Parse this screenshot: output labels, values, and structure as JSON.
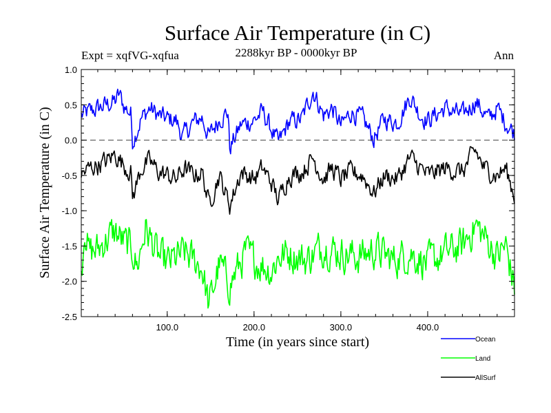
{
  "chart_data": {
    "type": "line",
    "title": "Surface Air Temperature (in C)",
    "subtitle_left": "Expt = xqfVG-xqfua",
    "subtitle_center": "2288kyr BP - 0000kyr BP",
    "subtitle_right": "Ann",
    "xlabel": "Time (in years since start)",
    "ylabel": "Surface Air Temperature (in C)",
    "xlim": [
      1,
      500
    ],
    "ylim": [
      -2.5,
      1.0
    ],
    "xticks": [
      "100.0",
      "200.0",
      "300.0",
      "400.0"
    ],
    "xtick_values": [
      100,
      200,
      300,
      400
    ],
    "yticks": [
      "1.0",
      "0.5",
      "0.0",
      "-0.5",
      "-1.0",
      "-1.5",
      "-2.0",
      "-2.5"
    ],
    "ytick_values": [
      1.0,
      0.5,
      0.0,
      -0.5,
      -1.0,
      -1.5,
      -2.0,
      -2.5
    ],
    "zero_line": 0.0,
    "n_points": 500,
    "series": [
      {
        "name": "Ocean",
        "color": "#0000ff",
        "anchors_x": [
          1,
          10,
          20,
          30,
          40,
          45,
          50,
          58,
          60,
          70,
          80,
          90,
          100,
          110,
          118,
          130,
          140,
          148,
          160,
          170,
          172,
          185,
          200,
          210,
          220,
          228,
          240,
          255,
          268,
          280,
          290,
          300,
          312,
          325,
          338,
          350,
          365,
          380,
          392,
          400,
          420,
          440,
          455,
          470,
          480,
          490,
          500
        ],
        "anchors_y": [
          0.35,
          0.4,
          0.45,
          0.5,
          0.55,
          0.65,
          0.48,
          0.38,
          -0.02,
          0.3,
          0.45,
          0.35,
          0.3,
          0.28,
          0.05,
          0.25,
          0.32,
          0.05,
          0.3,
          0.4,
          -0.12,
          0.22,
          0.28,
          0.4,
          0.15,
          -0.05,
          0.25,
          0.3,
          0.7,
          0.35,
          0.45,
          0.2,
          0.4,
          0.3,
          0.02,
          0.3,
          0.25,
          0.62,
          0.35,
          0.28,
          0.45,
          0.35,
          0.55,
          0.3,
          0.45,
          0.25,
          0.1
        ]
      },
      {
        "name": "Land",
        "color": "#00ff00",
        "anchors_x": [
          1,
          5,
          10,
          20,
          30,
          40,
          50,
          60,
          65,
          75,
          90,
          100,
          120,
          140,
          148,
          160,
          172,
          190,
          200,
          220,
          228,
          240,
          260,
          280,
          300,
          320,
          340,
          360,
          380,
          400,
          420,
          440,
          455,
          470,
          480,
          490,
          500
        ],
        "anchors_y": [
          -1.9,
          -1.2,
          -1.6,
          -1.55,
          -1.4,
          -1.3,
          -1.45,
          -1.55,
          -1.8,
          -1.25,
          -1.65,
          -1.75,
          -1.6,
          -1.8,
          -2.35,
          -1.75,
          -2.05,
          -1.6,
          -1.7,
          -1.85,
          -1.65,
          -1.6,
          -1.7,
          -1.5,
          -1.6,
          -1.65,
          -1.55,
          -1.7,
          -1.6,
          -1.75,
          -1.6,
          -1.5,
          -1.2,
          -1.45,
          -1.65,
          -1.5,
          -2.1
        ]
      },
      {
        "name": "AllSurf",
        "color": "#000000",
        "anchors_x": [
          1,
          10,
          20,
          30,
          40,
          50,
          58,
          60,
          70,
          80,
          90,
          100,
          110,
          120,
          130,
          140,
          148,
          160,
          172,
          185,
          200,
          210,
          220,
          228,
          240,
          255,
          268,
          280,
          290,
          300,
          312,
          325,
          338,
          350,
          365,
          380,
          400,
          420,
          440,
          455,
          465,
          480,
          490,
          500
        ],
        "anchors_y": [
          -0.5,
          -0.4,
          -0.35,
          -0.3,
          -0.2,
          -0.35,
          -0.45,
          -0.82,
          -0.4,
          -0.3,
          -0.45,
          -0.5,
          -0.55,
          -0.4,
          -0.5,
          -0.45,
          -0.9,
          -0.5,
          -0.92,
          -0.45,
          -0.55,
          -0.4,
          -0.6,
          -0.85,
          -0.5,
          -0.45,
          -0.25,
          -0.55,
          -0.4,
          -0.55,
          -0.45,
          -0.5,
          -0.75,
          -0.5,
          -0.55,
          -0.25,
          -0.5,
          -0.4,
          -0.45,
          -0.15,
          -0.4,
          -0.5,
          -0.4,
          -0.8
        ]
      }
    ],
    "legend": [
      {
        "label": "Ocean",
        "color": "#0000ff"
      },
      {
        "label": "Land",
        "color": "#00ff00"
      },
      {
        "label": "AllSurf",
        "color": "#000000"
      }
    ],
    "legend_position": "bottom-right"
  }
}
